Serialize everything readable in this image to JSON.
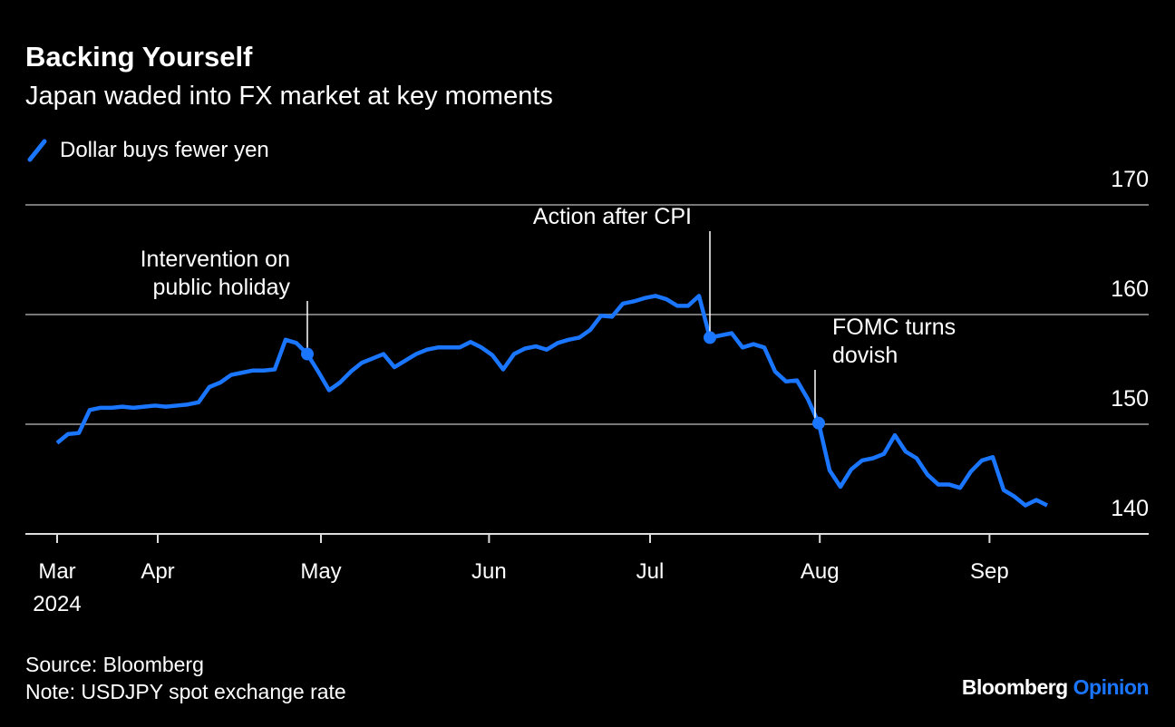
{
  "chart_data": {
    "type": "line",
    "title": "Backing Yourself",
    "subtitle": "Japan waded into FX market at key moments",
    "series": [
      {
        "name": "Dollar buys fewer yen",
        "color": "#1a75ff",
        "values": [
          148.3,
          149.1,
          149.2,
          151.3,
          151.5,
          151.5,
          151.6,
          151.5,
          151.6,
          151.7,
          151.6,
          151.7,
          151.8,
          152.0,
          153.4,
          153.8,
          154.5,
          154.7,
          154.9,
          154.9,
          155.0,
          157.7,
          157.4,
          156.4,
          154.8,
          153.1,
          153.8,
          154.8,
          155.6,
          156.0,
          156.4,
          155.2,
          155.8,
          156.4,
          156.8,
          157.0,
          157.0,
          157.0,
          157.5,
          157.0,
          156.3,
          155.0,
          156.4,
          156.9,
          157.1,
          156.8,
          157.4,
          157.7,
          157.9,
          158.6,
          159.9,
          159.8,
          161.0,
          161.2,
          161.5,
          161.7,
          161.4,
          160.8,
          160.8,
          161.7,
          157.9,
          158.1,
          158.3,
          157.0,
          157.3,
          157.0,
          154.8,
          153.9,
          154.0,
          152.3,
          150.1,
          145.8,
          144.3,
          145.9,
          146.7,
          146.9,
          147.3,
          149.0,
          147.5,
          146.9,
          145.4,
          144.5,
          144.5,
          144.2,
          145.7,
          146.7,
          147.0,
          144.0,
          143.4,
          142.6,
          143.1,
          142.6
        ]
      }
    ],
    "xlim": [
      0,
      91
    ],
    "xticks": [
      {
        "value": 0,
        "label": "Mar"
      },
      {
        "value": 9.25,
        "label": "Apr"
      },
      {
        "value": 24.25,
        "label": "May"
      },
      {
        "value": 39.7,
        "label": "Jun"
      },
      {
        "value": 54.5,
        "label": "Jul"
      },
      {
        "value": 70.1,
        "label": "Aug"
      },
      {
        "value": 85.7,
        "label": "Sep"
      }
    ],
    "xtick_year": "2024",
    "ylim": [
      140,
      170
    ],
    "yticks": [
      140,
      150,
      160,
      170
    ],
    "grid": true,
    "annotations": [
      {
        "lines": [
          "Intervention on",
          "public holiday"
        ],
        "point": 23
      },
      {
        "lines": [
          "Action after CPI"
        ],
        "point": 60
      },
      {
        "lines": [
          "FOMC turns",
          "dovish"
        ],
        "point": 70
      }
    ],
    "source": "Source: Bloomberg",
    "note": "Note: USDJPY spot exchange rate",
    "brand": [
      "Bloomberg",
      "Opinion"
    ]
  }
}
